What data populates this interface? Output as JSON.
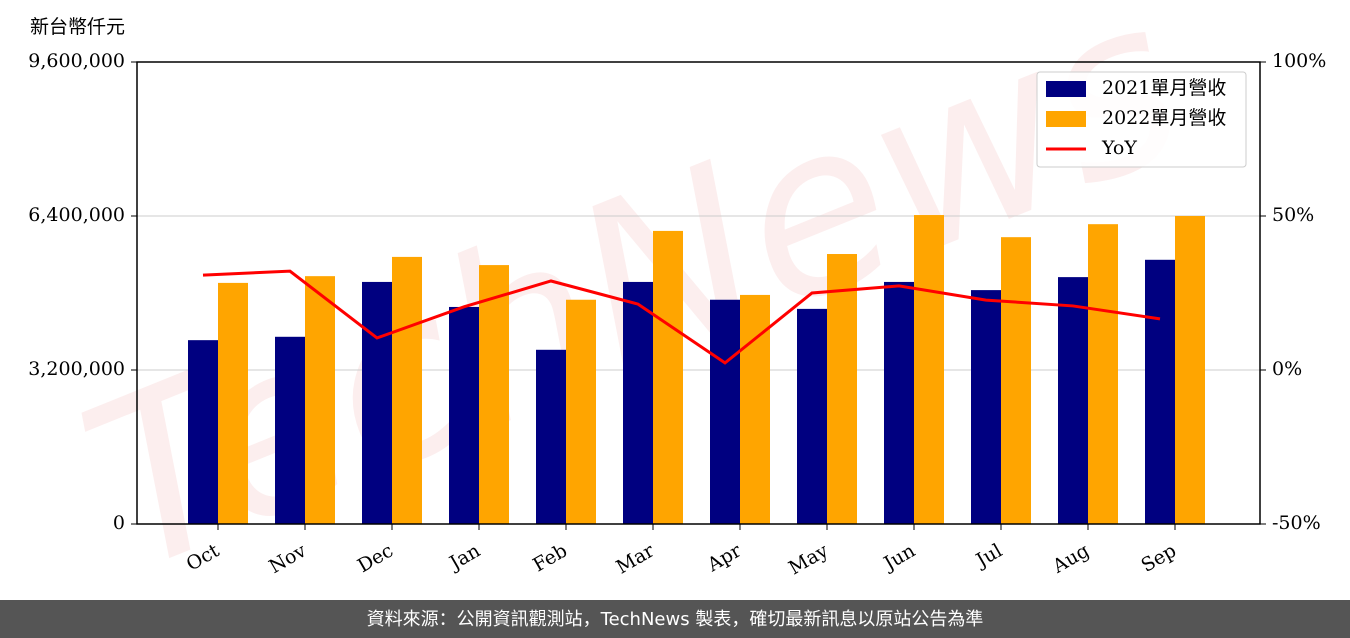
{
  "chart_data": {
    "type": "bar_line",
    "ylabel": "新台幣仟元",
    "watermark": "TechNews",
    "footer": "資料來源：公開資訊觀測站，TechNews 製表，確切最新訊息以原站公告為準",
    "categories": [
      "Oct",
      "Nov",
      "Dec",
      "Jan",
      "Feb",
      "Mar",
      "Apr",
      "May",
      "Jun",
      "Jul",
      "Aug",
      "Sep"
    ],
    "series": [
      {
        "name": "2021單月營收",
        "color": "#000080",
        "values": [
          3820000,
          3890000,
          5030000,
          4510000,
          3620000,
          5030000,
          4660000,
          4470000,
          5030000,
          4860000,
          5130000,
          5490000
        ]
      },
      {
        "name": "2022單月營收",
        "color": "#ffa500",
        "values": [
          5010000,
          5150000,
          5550000,
          5380000,
          4660000,
          6090000,
          4760000,
          5610000,
          6420000,
          5960000,
          6230000,
          6400000
        ]
      },
      {
        "name": "YoY",
        "color": "#ff0000",
        "axis": "y2",
        "values": [
          30.8,
          32.1,
          10.4,
          20.5,
          28.9,
          21.4,
          2.3,
          25.0,
          27.3,
          22.7,
          20.8,
          16.6
        ]
      }
    ],
    "ylim": [
      0,
      9600000
    ],
    "yticks": [
      0,
      {
        "value": 3200000,
        "label": "3,200,000"
      },
      {
        "value": 6400000,
        "label": "6,400,000"
      },
      {
        "value": 9600000,
        "label": "9,600,000"
      }
    ],
    "y2lim": [
      -50,
      100
    ],
    "y2ticks": [
      {
        "value": -50,
        "label": "-50%"
      },
      {
        "value": 0,
        "label": "0%"
      },
      {
        "value": 50,
        "label": "50%"
      },
      {
        "value": 100,
        "label": "100%"
      }
    ],
    "grid": true,
    "legend": "upper right"
  }
}
